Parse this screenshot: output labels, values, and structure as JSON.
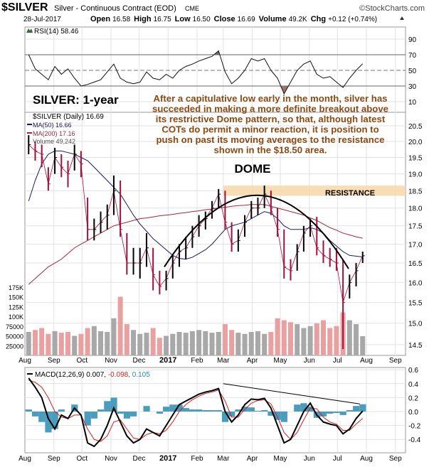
{
  "header": {
    "symbol": "$SILVER",
    "name": "Silver - Continuous Contract (EOD)",
    "exchange": "CME",
    "watermark": "©StockCharts.com",
    "date": "28-Jul-2017",
    "open_label": "Open",
    "open": "16.58",
    "high_label": "High",
    "high": "16.75",
    "low_label": "Low",
    "low": "16.50",
    "close_label": "Close",
    "close": "16.69",
    "volume_label": "Volume",
    "volume": "49.2K",
    "chg_label": "Chg",
    "chg": "+0.12 (+0.74%)"
  },
  "annotations": {
    "title": "SILVER: 1-year",
    "commentary": [
      "After a capitulative low early in the month, silver has",
      "succeeded in making a more definite breakout above",
      "its restrictive Dome pattern, so that, although latest",
      "COTs do permit a minor reaction, it is position to",
      "push on past its moving averages to the resistance",
      "shown in the $18.50 area."
    ],
    "dome": "DOME",
    "resistance": "RESISTANCE"
  },
  "colors": {
    "up": "#000000",
    "down": "#a0103a",
    "ma50": "#1a1a5e",
    "ma200": "#a0283c",
    "vol_up": "#a8a8a8",
    "vol_down": "#e8a0a0",
    "rsi_over": "#707070",
    "rsi_under": "#a0706a",
    "macd": "#000000",
    "signal": "#d02020",
    "hist": "#2a8cb0",
    "annotation": "#8b4a12",
    "title": "#4848b0",
    "resistance_band": "#f8d8a8"
  },
  "chart_data": [
    {
      "type": "line",
      "panel": "RSI",
      "legend": "RSI(14) 58.46",
      "ylim": [
        0,
        100
      ],
      "yticks": [
        90,
        70,
        50,
        30,
        10
      ],
      "bands": [
        70,
        30
      ],
      "values": [
        70,
        52,
        45,
        38,
        55,
        45,
        52,
        40,
        30,
        32,
        35,
        38,
        48,
        58,
        40,
        35,
        33,
        35,
        48,
        40,
        38,
        45,
        40,
        50,
        55,
        58,
        62,
        65,
        68,
        75,
        48,
        33,
        40,
        50,
        65,
        62,
        65,
        50,
        40,
        20,
        35,
        50,
        58,
        62,
        45,
        40,
        42,
        35,
        28,
        40,
        50,
        58.46
      ]
    },
    {
      "type": "ohlc",
      "panel": "price",
      "scale": "log",
      "ylim": [
        14.3,
        20.8
      ],
      "yticks": [
        20.5,
        20.0,
        19.5,
        19.0,
        18.5,
        18.0,
        17.5,
        17.0,
        16.5,
        16.0,
        15.5,
        15.0,
        14.5
      ],
      "legend": {
        "price": "$SILVER (Daily) 16.69",
        "ma50": "MA(50) 16.66",
        "ma200": "MA(200) 17.16",
        "volume": "Volume 49,242"
      },
      "dates": [
        "2016-08-05",
        "2016-08-12",
        "2016-08-19",
        "2016-08-26",
        "2016-09-02",
        "2016-09-09",
        "2016-09-16",
        "2016-09-23",
        "2016-09-30",
        "2016-10-07",
        "2016-10-14",
        "2016-10-21",
        "2016-10-28",
        "2016-11-04",
        "2016-11-11",
        "2016-11-18",
        "2016-11-25",
        "2016-12-02",
        "2016-12-09",
        "2016-12-16",
        "2016-12-23",
        "2016-12-30",
        "2017-01-06",
        "2017-01-13",
        "2017-01-20",
        "2017-01-27",
        "2017-02-03",
        "2017-02-10",
        "2017-02-17",
        "2017-02-24",
        "2017-03-03",
        "2017-03-10",
        "2017-03-17",
        "2017-03-24",
        "2017-03-31",
        "2017-04-07",
        "2017-04-14",
        "2017-04-21",
        "2017-04-28",
        "2017-05-05",
        "2017-05-12",
        "2017-05-19",
        "2017-05-26",
        "2017-06-02",
        "2017-06-09",
        "2017-06-16",
        "2017-06-23",
        "2017-06-30",
        "2017-07-07",
        "2017-07-14",
        "2017-07-21",
        "2017-07-28"
      ],
      "close": [
        19.9,
        19.7,
        19.6,
        18.7,
        19.5,
        19.2,
        19.0,
        19.6,
        19.3,
        17.4,
        17.4,
        17.6,
        17.8,
        18.5,
        17.4,
        16.5,
        16.5,
        16.5,
        16.9,
        16.2,
        15.9,
        16.1,
        16.5,
        16.8,
        16.9,
        17.2,
        17.5,
        17.7,
        18.0,
        18.4,
        17.6,
        17.0,
        17.1,
        17.6,
        18.0,
        18.0,
        18.4,
        18.0,
        17.4,
        16.4,
        16.3,
        16.8,
        17.3,
        17.5,
        16.9,
        16.7,
        16.6,
        16.5,
        15.5,
        16.0,
        16.3,
        16.69
      ],
      "high": [
        20.2,
        20.0,
        19.9,
        19.2,
        19.8,
        19.6,
        19.4,
        19.9,
        19.7,
        18.3,
        17.7,
        17.9,
        18.1,
        18.95,
        18.8,
        17.3,
        16.9,
        16.9,
        17.3,
        16.9,
        16.3,
        16.3,
        16.7,
        17.0,
        17.2,
        17.5,
        17.8,
        17.9,
        18.2,
        18.55,
        18.5,
        17.6,
        17.4,
        17.8,
        18.2,
        18.3,
        18.65,
        18.5,
        18.0,
        17.4,
        16.6,
        17.0,
        17.5,
        17.7,
        17.75,
        17.1,
        16.9,
        16.9,
        16.6,
        16.2,
        16.5,
        16.8
      ],
      "low": [
        19.6,
        19.4,
        19.2,
        18.5,
        19.0,
        18.9,
        18.6,
        19.1,
        18.9,
        17.1,
        17.1,
        17.3,
        17.4,
        17.8,
        17.2,
        16.2,
        16.2,
        16.1,
        16.4,
        15.8,
        15.7,
        15.8,
        16.1,
        16.4,
        16.6,
        16.9,
        17.2,
        17.4,
        17.7,
        18.0,
        17.4,
        16.8,
        16.8,
        17.2,
        17.7,
        17.8,
        18.0,
        17.8,
        17.2,
        16.1,
        16.05,
        16.3,
        16.8,
        17.2,
        16.7,
        16.5,
        16.4,
        16.3,
        14.4,
        15.6,
        15.9,
        16.5
      ],
      "ma50": [
        18.2,
        18.8,
        19.3,
        19.6,
        19.7,
        19.7,
        19.65,
        19.6,
        19.5,
        19.4,
        19.2,
        19.0,
        18.8,
        18.6,
        18.4,
        18.1,
        17.8,
        17.55,
        17.35,
        17.15,
        17.0,
        16.85,
        16.7,
        16.62,
        16.6,
        16.65,
        16.75,
        16.85,
        17.0,
        17.2,
        17.4,
        17.5,
        17.55,
        17.6,
        17.7,
        17.8,
        17.9,
        17.85,
        17.7,
        17.5,
        17.4,
        17.4,
        17.4,
        17.45,
        17.4,
        17.3,
        17.1,
        16.95,
        16.8,
        16.7,
        16.68,
        16.66
      ],
      "ma200": [
        15.95,
        16.1,
        16.25,
        16.4,
        16.5,
        16.6,
        16.75,
        16.9,
        17.0,
        17.1,
        17.2,
        17.3,
        17.4,
        17.5,
        17.55,
        17.6,
        17.65,
        17.7,
        17.72,
        17.75,
        17.78,
        17.8,
        17.82,
        17.85,
        17.87,
        17.9,
        17.92,
        17.95,
        17.97,
        18.0,
        18.02,
        18.05,
        18.07,
        18.08,
        18.1,
        18.1,
        18.1,
        18.05,
        18.0,
        17.95,
        17.9,
        17.85,
        17.8,
        17.72,
        17.65,
        17.55,
        17.45,
        17.38,
        17.3,
        17.25,
        17.2,
        17.16
      ],
      "volume_yticks": [
        "175K",
        "150K",
        "125K",
        "100K",
        "75000",
        "50000",
        "25000"
      ],
      "volume_tick_values": [
        175000,
        150000,
        125000,
        100000,
        75000,
        50000,
        25000
      ],
      "volume": [
        60000,
        65000,
        70000,
        55000,
        62000,
        58000,
        60000,
        50000,
        55000,
        70000,
        75000,
        62000,
        60000,
        95000,
        150000,
        80000,
        65000,
        55000,
        58000,
        70000,
        45000,
        50000,
        55000,
        60000,
        58000,
        62000,
        65000,
        62000,
        58000,
        60000,
        80000,
        65000,
        58000,
        55000,
        60000,
        62000,
        55000,
        60000,
        95000,
        90000,
        85000,
        80000,
        70000,
        75000,
        82000,
        90000,
        70000,
        75000,
        110000,
        90000,
        80000,
        49242
      ]
    },
    {
      "type": "line",
      "panel": "MACD",
      "legend": {
        "name": "MACD(12,26,9)",
        "macd": "0.007,",
        "signal": "-0.098,",
        "hist": "0.105"
      },
      "ylim": [
        -0.55,
        0.62
      ],
      "yticks": [
        0.6,
        0.4,
        0.2,
        0.0,
        -0.2,
        -0.4
      ],
      "ytick_labels": [
        "0.6",
        "0.4",
        "0.2",
        "0.0",
        "-0.2",
        "-0.4"
      ],
      "macd": [
        0.48,
        0.35,
        0.2,
        -0.1,
        -0.25,
        -0.05,
        -0.1,
        0.05,
        -0.05,
        -0.45,
        -0.5,
        -0.4,
        -0.2,
        0.05,
        -0.15,
        -0.35,
        -0.45,
        -0.4,
        -0.25,
        -0.3,
        -0.35,
        -0.2,
        -0.05,
        0.1,
        0.15,
        0.2,
        0.25,
        0.28,
        0.3,
        0.33,
        0.0,
        -0.15,
        -0.05,
        0.1,
        0.18,
        0.17,
        0.19,
        0.05,
        -0.2,
        -0.45,
        -0.4,
        -0.2,
        0.0,
        0.12,
        -0.05,
        -0.15,
        -0.18,
        -0.2,
        -0.32,
        -0.25,
        -0.1,
        0.007
      ],
      "signal": [
        0.45,
        0.42,
        0.35,
        0.2,
        0.0,
        -0.08,
        -0.1,
        -0.05,
        -0.05,
        -0.25,
        -0.4,
        -0.43,
        -0.35,
        -0.15,
        -0.12,
        -0.25,
        -0.38,
        -0.4,
        -0.33,
        -0.3,
        -0.32,
        -0.27,
        -0.15,
        0.0,
        0.1,
        0.17,
        0.22,
        0.26,
        0.28,
        0.31,
        0.15,
        -0.08,
        -0.08,
        0.03,
        0.12,
        0.16,
        0.17,
        0.11,
        -0.08,
        -0.3,
        -0.4,
        -0.3,
        -0.12,
        0.05,
        0.04,
        -0.08,
        -0.15,
        -0.18,
        -0.27,
        -0.27,
        -0.18,
        -0.098
      ],
      "trendline": {
        "from": [
          "2017-03-01",
          0.4
        ],
        "to": [
          "2017-07-25",
          0.11
        ]
      }
    }
  ],
  "x_axis": {
    "labels": [
      "Aug",
      "Sep",
      "Oct",
      "Nov",
      "Dec",
      "2017",
      "Feb",
      "Mar",
      "Apr",
      "May",
      "Jun",
      "Jul",
      "Aug",
      "Sep"
    ],
    "dates": [
      "2016-08-01",
      "2016-09-01",
      "2016-10-01",
      "2016-11-01",
      "2016-12-01",
      "2017-01-01",
      "2017-02-01",
      "2017-03-01",
      "2017-04-01",
      "2017-05-01",
      "2017-06-01",
      "2017-07-01",
      "2017-08-01",
      "2017-09-01"
    ]
  },
  "resistance_level": 18.5
}
